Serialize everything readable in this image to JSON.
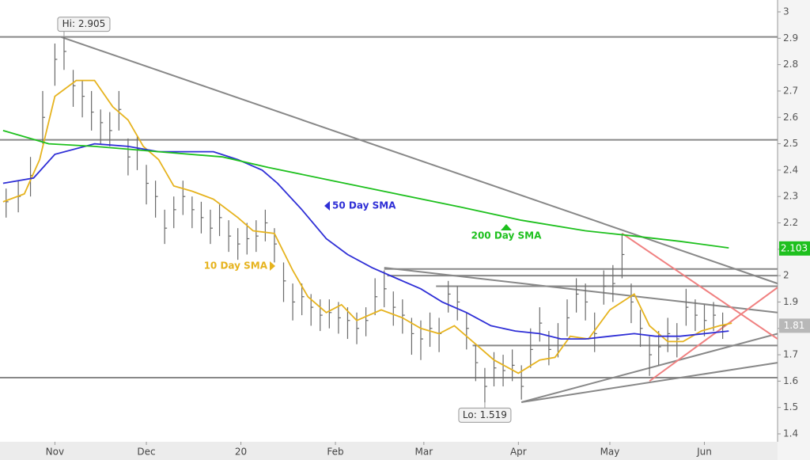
{
  "chart_data": {
    "type": "ohlc",
    "xlim": [
      -18,
      237
    ],
    "ylim": [
      1.4,
      3.0
    ],
    "xticks": [
      {
        "value": 0,
        "label": "Nov"
      },
      {
        "value": 30,
        "label": "Dec"
      },
      {
        "value": 61,
        "label": "20"
      },
      {
        "value": 92,
        "label": "Feb"
      },
      {
        "value": 121,
        "label": "Mar"
      },
      {
        "value": 152,
        "label": "Apr"
      },
      {
        "value": 182,
        "label": "May"
      },
      {
        "value": 213,
        "label": "Jun"
      }
    ],
    "yticks": [
      1.4,
      1.5,
      1.6,
      1.7,
      1.8,
      1.9,
      2,
      2.1,
      2.2,
      2.3,
      2.4,
      2.5,
      2.6,
      2.7,
      2.8,
      2.9,
      3
    ],
    "bars": {
      "color": "#6a6a6a",
      "x": [
        -16,
        -12,
        -8,
        -4,
        0,
        3,
        6,
        9,
        12,
        15,
        18,
        21,
        24,
        27,
        30,
        33,
        36,
        39,
        42,
        45,
        48,
        51,
        54,
        57,
        60,
        63,
        66,
        69,
        72,
        75,
        78,
        81,
        84,
        87,
        90,
        93,
        96,
        99,
        102,
        105,
        108,
        111,
        114,
        117,
        120,
        123,
        126,
        129,
        132,
        135,
        138,
        141,
        144,
        147,
        150,
        153,
        156,
        159,
        162,
        165,
        168,
        171,
        174,
        177,
        180,
        183,
        186,
        189,
        192,
        195,
        198,
        201,
        204,
        207,
        210,
        213,
        216,
        219
      ],
      "high": [
        2.33,
        2.36,
        2.45,
        2.7,
        2.88,
        2.905,
        2.78,
        2.74,
        2.7,
        2.63,
        2.62,
        2.7,
        2.52,
        2.53,
        2.42,
        2.36,
        2.25,
        2.3,
        2.36,
        2.3,
        2.28,
        2.25,
        2.27,
        2.21,
        2.18,
        2.2,
        2.21,
        2.25,
        2.18,
        2.05,
        1.97,
        1.97,
        1.93,
        1.91,
        1.91,
        1.9,
        1.88,
        1.86,
        1.88,
        1.99,
        2.02,
        1.94,
        1.91,
        1.84,
        1.83,
        1.86,
        1.84,
        1.98,
        1.96,
        1.86,
        1.74,
        1.65,
        1.71,
        1.7,
        1.72,
        1.66,
        1.8,
        1.88,
        1.79,
        1.82,
        1.91,
        1.99,
        1.97,
        1.86,
        2.02,
        2.04,
        2.16,
        1.97,
        1.87,
        1.77,
        1.79,
        1.84,
        1.82,
        1.95,
        1.91,
        1.89,
        1.9,
        1.86
      ],
      "low": [
        2.22,
        2.24,
        2.3,
        2.5,
        2.72,
        2.78,
        2.64,
        2.6,
        2.55,
        2.5,
        2.49,
        2.55,
        2.38,
        2.4,
        2.27,
        2.22,
        2.12,
        2.18,
        2.23,
        2.18,
        2.16,
        2.12,
        2.15,
        2.09,
        2.06,
        2.08,
        2.09,
        2.13,
        2.05,
        1.9,
        1.83,
        1.85,
        1.81,
        1.79,
        1.8,
        1.78,
        1.76,
        1.74,
        1.77,
        1.85,
        1.88,
        1.81,
        1.78,
        1.7,
        1.68,
        1.73,
        1.71,
        1.86,
        1.83,
        1.72,
        1.6,
        1.519,
        1.58,
        1.58,
        1.6,
        1.53,
        1.65,
        1.75,
        1.66,
        1.69,
        1.77,
        1.86,
        1.83,
        1.71,
        1.89,
        1.9,
        1.99,
        1.82,
        1.73,
        1.62,
        1.66,
        1.71,
        1.69,
        1.81,
        1.79,
        1.77,
        1.79,
        1.76
      ],
      "close": [
        2.28,
        2.3,
        2.38,
        2.6,
        2.82,
        2.85,
        2.72,
        2.68,
        2.62,
        2.58,
        2.55,
        2.63,
        2.45,
        2.48,
        2.35,
        2.3,
        2.18,
        2.25,
        2.3,
        2.25,
        2.22,
        2.18,
        2.22,
        2.15,
        2.12,
        2.14,
        2.15,
        2.2,
        2.12,
        1.98,
        1.9,
        1.92,
        1.88,
        1.85,
        1.86,
        1.84,
        1.83,
        1.8,
        1.83,
        1.92,
        1.95,
        1.88,
        1.85,
        1.78,
        1.76,
        1.8,
        1.78,
        1.93,
        1.9,
        1.8,
        1.67,
        1.58,
        1.65,
        1.64,
        1.66,
        1.58,
        1.72,
        1.82,
        1.72,
        1.76,
        1.84,
        1.93,
        1.9,
        1.78,
        1.96,
        1.97,
        2.08,
        1.9,
        1.8,
        1.7,
        1.73,
        1.78,
        1.76,
        1.88,
        1.85,
        1.83,
        1.85,
        1.81
      ]
    },
    "series": [
      {
        "name": "10 Day SMA",
        "color": "#e6b31e",
        "x": [
          -17,
          -10,
          -5,
          0,
          7,
          13,
          19,
          24,
          29,
          34,
          39,
          45,
          52,
          60,
          65,
          72,
          78,
          83,
          89,
          94,
          99,
          107,
          114,
          120,
          126,
          131,
          138,
          144,
          152,
          159,
          164,
          169,
          175,
          182,
          190,
          195,
          201,
          206,
          212,
          218,
          222
        ],
        "values": [
          2.28,
          2.31,
          2.44,
          2.68,
          2.74,
          2.74,
          2.64,
          2.59,
          2.49,
          2.44,
          2.34,
          2.32,
          2.29,
          2.22,
          2.17,
          2.16,
          2.02,
          1.92,
          1.86,
          1.89,
          1.83,
          1.87,
          1.84,
          1.8,
          1.78,
          1.81,
          1.74,
          1.68,
          1.63,
          1.68,
          1.69,
          1.77,
          1.76,
          1.87,
          1.93,
          1.81,
          1.75,
          1.75,
          1.79,
          1.81,
          1.82
        ]
      },
      {
        "name": "50 Day SMA",
        "color": "#2f2fd6",
        "x": [
          -17,
          -7,
          0,
          13,
          24,
          34,
          45,
          52,
          60,
          68,
          73,
          81,
          89,
          96,
          104,
          112,
          120,
          127,
          135,
          143,
          151,
          159,
          166,
          174,
          182,
          190,
          197,
          205,
          213,
          221
        ],
        "values": [
          2.35,
          2.37,
          2.46,
          2.5,
          2.49,
          2.47,
          2.47,
          2.47,
          2.44,
          2.4,
          2.35,
          2.25,
          2.14,
          2.08,
          2.03,
          1.99,
          1.95,
          1.9,
          1.86,
          1.81,
          1.79,
          1.78,
          1.76,
          1.76,
          1.77,
          1.78,
          1.77,
          1.77,
          1.78,
          1.79
        ]
      },
      {
        "name": "200 Day SMA",
        "color": "#1ec01e",
        "x": [
          -17,
          -2,
          13,
          34,
          55,
          70,
          91,
          112,
          133,
          153,
          174,
          190,
          205,
          221
        ],
        "values": [
          2.55,
          2.5,
          2.49,
          2.47,
          2.45,
          2.41,
          2.36,
          2.31,
          2.26,
          2.21,
          2.17,
          2.15,
          2.13,
          2.105
        ]
      }
    ],
    "lines": [
      {
        "x": [
          -18,
          237
        ],
        "y": [
          2.905,
          2.905
        ],
        "color": "#888888"
      },
      {
        "x": [
          -18,
          237
        ],
        "y": [
          2.515,
          2.515
        ],
        "color": "#888888"
      },
      {
        "x": [
          -18,
          237
        ],
        "y": [
          1.613,
          1.613
        ],
        "color": "#888888"
      },
      {
        "x": [
          108,
          237
        ],
        "y": [
          2.025,
          2.025
        ],
        "color": "#888888"
      },
      {
        "x": [
          109,
          237
        ],
        "y": [
          2.0,
          2.0
        ],
        "color": "#888888"
      },
      {
        "x": [
          125,
          237
        ],
        "y": [
          1.96,
          1.96
        ],
        "color": "#888888"
      },
      {
        "x": [
          137,
          237
        ],
        "y": [
          1.735,
          1.735
        ],
        "color": "#888888"
      },
      {
        "x": [
          2,
          237
        ],
        "y": [
          2.905,
          1.97
        ],
        "color": "#888888"
      },
      {
        "x": [
          108,
          237
        ],
        "y": [
          2.03,
          1.86
        ],
        "color": "#888888"
      },
      {
        "x": [
          153,
          237
        ],
        "y": [
          1.52,
          1.78
        ],
        "color": "#888888"
      },
      {
        "x": [
          153,
          237
        ],
        "y": [
          1.52,
          1.67
        ],
        "color": "#888888"
      },
      {
        "x": [
          186,
          237
        ],
        "y": [
          2.16,
          1.76
        ],
        "color": "#f08080"
      },
      {
        "x": [
          195,
          237
        ],
        "y": [
          1.6,
          1.955
        ],
        "color": "#f08080"
      }
    ],
    "annotations": [
      {
        "text": "Hi: 2.905",
        "x": 3,
        "y": 2.905
      },
      {
        "text": "Lo: 1.519",
        "x": 141,
        "y": 1.519
      }
    ],
    "price_tags": [
      {
        "value": 2.103,
        "label": "2.103",
        "color": "#1ec01e"
      },
      {
        "value": 1.81,
        "label": "1.81",
        "color": "#b8b8b8"
      }
    ]
  }
}
